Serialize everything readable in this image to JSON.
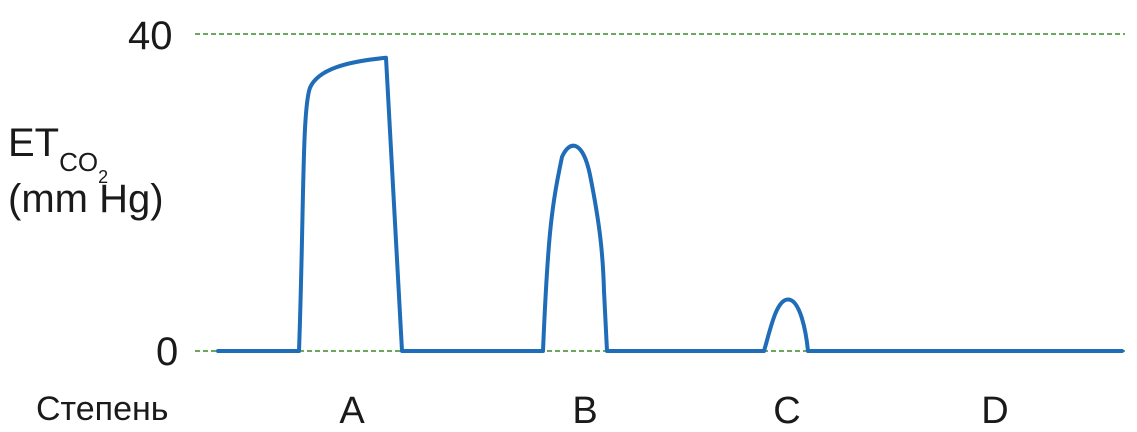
{
  "chart_data": {
    "type": "line",
    "ylabel_main": "ET",
    "ylabel_sub": "CO",
    "ylabel_subsub": "2",
    "ylabel_unit": "(mm Hg)",
    "xlabel": "Степень",
    "yticks": [
      "40",
      "0"
    ],
    "ylim": [
      0,
      40
    ],
    "grid": "dashed horizontal at 0 and 40",
    "categories": [
      "A",
      "B",
      "C",
      "D"
    ],
    "series": [
      {
        "segments": [
          {
            "category": "A",
            "plateau_start": 35.5,
            "plateau_end": 37
          },
          {
            "category": "B",
            "peak": 26
          },
          {
            "category": "C",
            "peak": 6.5
          },
          {
            "category": "D",
            "peak": 0
          }
        ]
      }
    ],
    "colors": {
      "line": "#1f6cb8",
      "grid": "#3a8a2a"
    }
  }
}
